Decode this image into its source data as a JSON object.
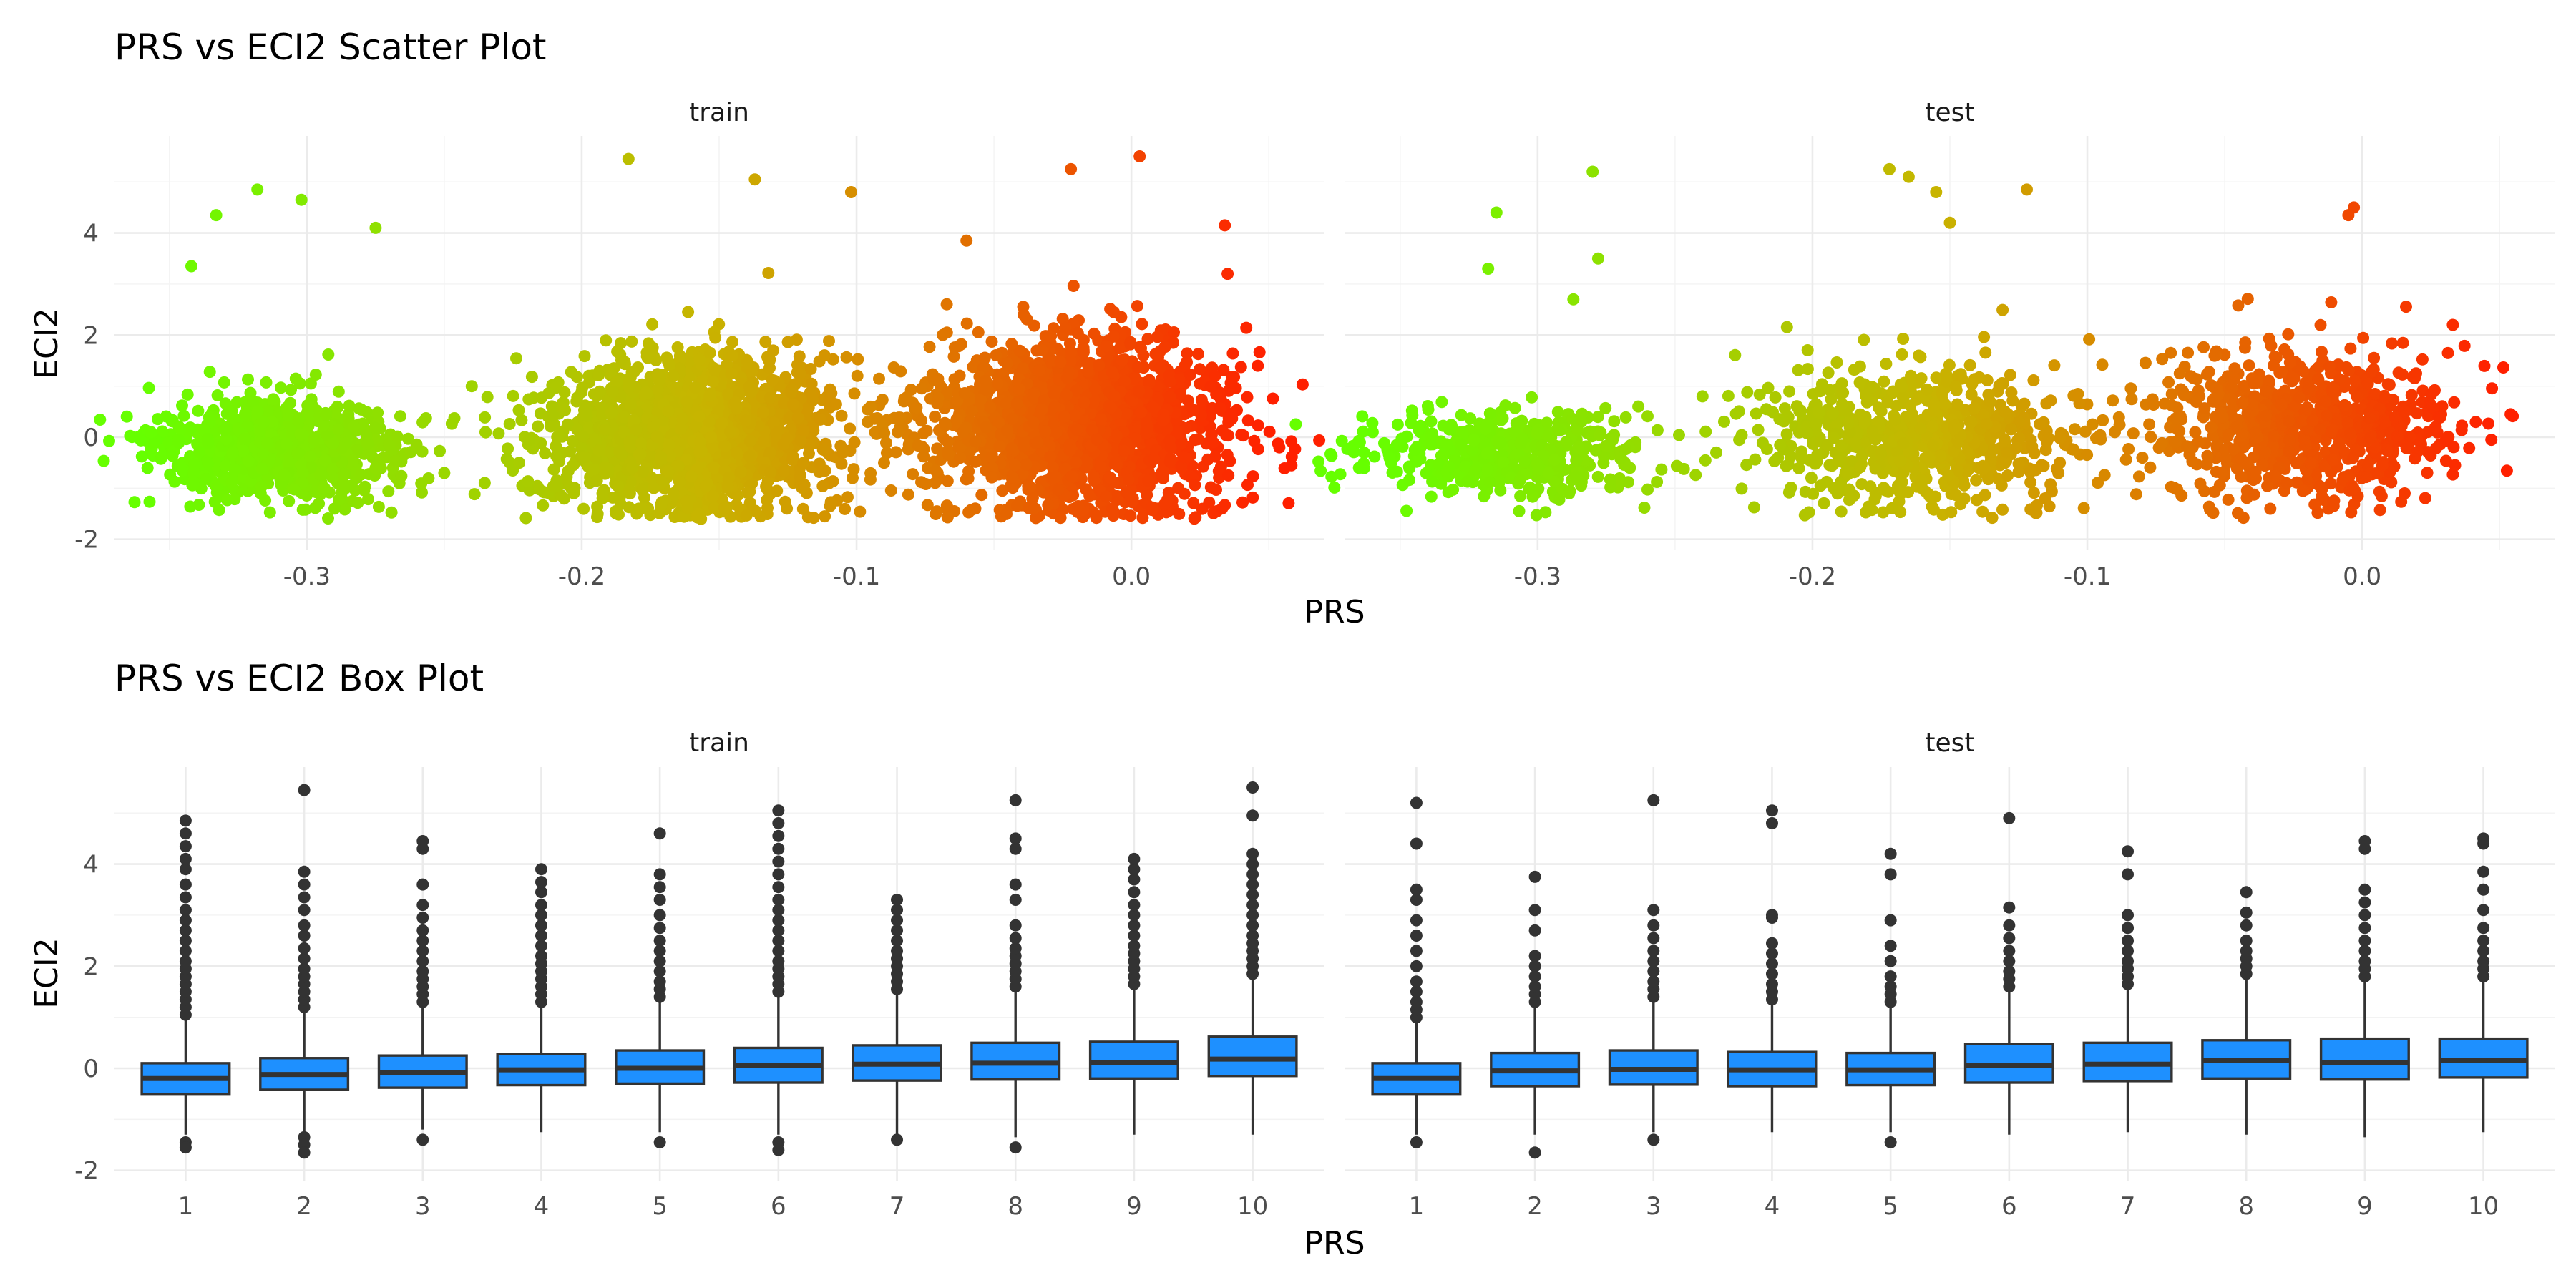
{
  "chart_data": [
    {
      "type": "scatter",
      "title": "PRS vs ECI2 Scatter Plot",
      "xlabel": "PRS",
      "ylabel": "ECI2",
      "facets": [
        "train",
        "test"
      ],
      "xlim": [
        -0.37,
        0.07
      ],
      "ylim": [
        -2.2,
        5.9
      ],
      "x_ticks": [
        -0.3,
        -0.2,
        -0.1,
        0.0
      ],
      "x_tick_labels": [
        "-0.3",
        "-0.2",
        "-0.1",
        "0.0"
      ],
      "y_ticks": [
        -2,
        0,
        2,
        4
      ],
      "y_tick_labels": [
        "-2",
        "0",
        "2",
        "4"
      ],
      "color_low": "#66ff00",
      "color_mid": "#c8b400",
      "color_high": "#ff2000",
      "clusters": [
        {
          "panel": "train",
          "x_center": -0.31,
          "x_spread": 0.022,
          "y_center": -0.3,
          "y_spread": 0.45,
          "n": 900
        },
        {
          "panel": "train",
          "x_center": -0.16,
          "x_spread": 0.028,
          "y_center": 0.05,
          "y_spread": 0.75,
          "n": 1500
        },
        {
          "panel": "train",
          "x_center": -0.02,
          "x_spread": 0.026,
          "y_center": 0.25,
          "y_spread": 0.8,
          "n": 1800
        },
        {
          "panel": "test",
          "x_center": -0.31,
          "x_spread": 0.025,
          "y_center": -0.3,
          "y_spread": 0.4,
          "n": 450
        },
        {
          "panel": "test",
          "x_center": -0.16,
          "x_spread": 0.03,
          "y_center": 0.0,
          "y_spread": 0.65,
          "n": 700
        },
        {
          "panel": "test",
          "x_center": -0.02,
          "x_spread": 0.026,
          "y_center": 0.2,
          "y_spread": 0.7,
          "n": 800
        }
      ],
      "extra_points": [
        {
          "panel": "train",
          "x": 0.046,
          "y": 1.4
        },
        {
          "panel": "train",
          "x": 0.034,
          "y": 4.15
        },
        {
          "panel": "train",
          "x": 0.035,
          "y": 3.2
        },
        {
          "panel": "train",
          "x": 0.04,
          "y": 0.05
        },
        {
          "panel": "train",
          "x": 0.003,
          "y": 5.5
        },
        {
          "panel": "train",
          "x": -0.022,
          "y": 5.25
        },
        {
          "panel": "train",
          "x": -0.183,
          "y": 5.45
        },
        {
          "panel": "train",
          "x": -0.137,
          "y": 5.05
        },
        {
          "panel": "train",
          "x": -0.102,
          "y": 4.8
        },
        {
          "panel": "train",
          "x": -0.318,
          "y": 4.85
        },
        {
          "panel": "train",
          "x": -0.333,
          "y": 4.35
        },
        {
          "panel": "train",
          "x": -0.302,
          "y": 4.65
        },
        {
          "panel": "train",
          "x": -0.342,
          "y": 3.35
        },
        {
          "panel": "train",
          "x": -0.275,
          "y": 4.1
        },
        {
          "panel": "train",
          "x": -0.06,
          "y": 3.85
        },
        {
          "panel": "train",
          "x": -0.24,
          "y": 1.0
        },
        {
          "panel": "train",
          "x": -0.235,
          "y": 0.1
        },
        {
          "panel": "train",
          "x": -0.25,
          "y": -0.7
        },
        {
          "panel": "train",
          "x": -0.085,
          "y": 0.1
        },
        {
          "panel": "train",
          "x": -0.09,
          "y": -0.5
        },
        {
          "panel": "test",
          "x": 0.047,
          "y": -0.05
        },
        {
          "panel": "test",
          "x": 0.033,
          "y": 2.2
        },
        {
          "panel": "test",
          "x": -0.003,
          "y": 4.5
        },
        {
          "panel": "test",
          "x": -0.005,
          "y": 4.35
        },
        {
          "panel": "test",
          "x": -0.172,
          "y": 5.25
        },
        {
          "panel": "test",
          "x": -0.165,
          "y": 5.1
        },
        {
          "panel": "test",
          "x": -0.155,
          "y": 4.8
        },
        {
          "panel": "test",
          "x": -0.122,
          "y": 4.85
        },
        {
          "panel": "test",
          "x": -0.15,
          "y": 4.2
        },
        {
          "panel": "test",
          "x": -0.28,
          "y": 5.2
        },
        {
          "panel": "test",
          "x": -0.315,
          "y": 4.4
        },
        {
          "panel": "test",
          "x": -0.318,
          "y": 3.3
        },
        {
          "panel": "test",
          "x": -0.278,
          "y": 3.5
        },
        {
          "panel": "test",
          "x": -0.287,
          "y": 2.7
        },
        {
          "panel": "test",
          "x": -0.36,
          "y": 0.1
        },
        {
          "panel": "test",
          "x": -0.365,
          "y": -0.6
        },
        {
          "panel": "test",
          "x": -0.24,
          "y": 0.8
        },
        {
          "panel": "test",
          "x": -0.235,
          "y": -0.3
        },
        {
          "panel": "test",
          "x": -0.09,
          "y": 0.1
        },
        {
          "panel": "test",
          "x": -0.08,
          "y": -0.4
        },
        {
          "panel": "test",
          "x": -0.11,
          "y": -0.5
        }
      ]
    },
    {
      "type": "box",
      "title": "PRS vs ECI2 Box Plot",
      "xlabel": "PRS",
      "ylabel": "ECI2",
      "facets": [
        "train",
        "test"
      ],
      "categories": [
        "1",
        "2",
        "3",
        "4",
        "5",
        "6",
        "7",
        "8",
        "9",
        "10"
      ],
      "ylim": [
        -2.2,
        5.9
      ],
      "y_ticks": [
        -2,
        0,
        2,
        4
      ],
      "y_tick_labels": [
        "-2",
        "0",
        "2",
        "4"
      ],
      "box_color": "#1e90ff",
      "panels": [
        {
          "name": "train",
          "boxes": [
            {
              "q1": -0.5,
              "median": -0.2,
              "q3": 0.1,
              "lower": -1.3,
              "upper": 0.95,
              "outliers_high": [
                1.05,
                1.2,
                1.35,
                1.5,
                1.65,
                1.8,
                1.95,
                2.1,
                2.3,
                2.5,
                2.7,
                2.9,
                3.1,
                3.35,
                3.6,
                3.9,
                4.1,
                4.35,
                4.6,
                4.85
              ],
              "outliers_low": [
                -1.45,
                -1.55
              ]
            },
            {
              "q1": -0.42,
              "median": -0.12,
              "q3": 0.2,
              "lower": -1.25,
              "upper": 1.1,
              "outliers_high": [
                1.2,
                1.35,
                1.5,
                1.65,
                1.8,
                1.95,
                2.15,
                2.35,
                2.6,
                2.8,
                3.1,
                3.35,
                3.6,
                3.85,
                5.45
              ],
              "outliers_low": [
                -1.35,
                -1.5,
                -1.65
              ]
            },
            {
              "q1": -0.38,
              "median": -0.08,
              "q3": 0.25,
              "lower": -1.2,
              "upper": 1.2,
              "outliers_high": [
                1.3,
                1.45,
                1.6,
                1.75,
                1.9,
                2.1,
                2.3,
                2.5,
                2.7,
                2.95,
                3.2,
                3.6,
                4.3,
                4.45
              ],
              "outliers_low": [
                -1.4
              ]
            },
            {
              "q1": -0.33,
              "median": -0.03,
              "q3": 0.28,
              "lower": -1.25,
              "upper": 1.2,
              "outliers_high": [
                1.3,
                1.45,
                1.6,
                1.75,
                1.9,
                2.05,
                2.2,
                2.4,
                2.6,
                2.8,
                3.0,
                3.2,
                3.45,
                3.65,
                3.9
              ]
            },
            {
              "q1": -0.3,
              "median": 0.0,
              "q3": 0.35,
              "lower": -1.25,
              "upper": 1.3,
              "outliers_high": [
                1.4,
                1.55,
                1.7,
                1.9,
                2.1,
                2.3,
                2.5,
                2.75,
                3.0,
                3.3,
                3.55,
                3.8,
                4.6
              ],
              "outliers_low": [
                -1.45
              ]
            },
            {
              "q1": -0.28,
              "median": 0.05,
              "q3": 0.4,
              "lower": -1.3,
              "upper": 1.4,
              "outliers_high": [
                1.5,
                1.65,
                1.8,
                1.95,
                2.1,
                2.3,
                2.5,
                2.7,
                2.9,
                3.1,
                3.3,
                3.55,
                3.8,
                4.05,
                4.3,
                4.55,
                4.8,
                5.05
              ],
              "outliers_low": [
                -1.45,
                -1.6
              ]
            },
            {
              "q1": -0.24,
              "median": 0.08,
              "q3": 0.45,
              "lower": -1.3,
              "upper": 1.45,
              "outliers_high": [
                1.55,
                1.7,
                1.85,
                2.0,
                2.15,
                2.3,
                2.5,
                2.7,
                2.9,
                3.1,
                3.3
              ],
              "outliers_low": [
                -1.4
              ]
            },
            {
              "q1": -0.22,
              "median": 0.1,
              "q3": 0.5,
              "lower": -1.35,
              "upper": 1.5,
              "outliers_high": [
                1.6,
                1.75,
                1.9,
                2.05,
                2.2,
                2.35,
                2.55,
                2.8,
                3.3,
                3.6,
                4.3,
                4.5,
                5.25
              ],
              "outliers_low": [
                -1.55
              ]
            },
            {
              "q1": -0.2,
              "median": 0.12,
              "q3": 0.52,
              "lower": -1.3,
              "upper": 1.55,
              "outliers_high": [
                1.65,
                1.8,
                1.95,
                2.1,
                2.25,
                2.4,
                2.6,
                2.8,
                3.0,
                3.2,
                3.45,
                3.7,
                3.9,
                4.1
              ]
            },
            {
              "q1": -0.15,
              "median": 0.18,
              "q3": 0.62,
              "lower": -1.3,
              "upper": 1.75,
              "outliers_high": [
                1.85,
                2.0,
                2.15,
                2.3,
                2.45,
                2.6,
                2.8,
                3.0,
                3.2,
                3.4,
                3.6,
                3.8,
                4.0,
                4.2,
                4.95,
                5.5
              ]
            }
          ]
        },
        {
          "name": "test",
          "boxes": [
            {
              "q1": -0.5,
              "median": -0.2,
              "q3": 0.1,
              "lower": -1.3,
              "upper": 0.9,
              "outliers_high": [
                1.0,
                1.15,
                1.3,
                1.5,
                1.7,
                2.0,
                2.3,
                2.6,
                2.9,
                3.3,
                3.5,
                4.4,
                5.2
              ],
              "outliers_low": [
                -1.45
              ]
            },
            {
              "q1": -0.35,
              "median": -0.05,
              "q3": 0.3,
              "lower": -1.3,
              "upper": 1.2,
              "outliers_high": [
                1.3,
                1.45,
                1.6,
                1.8,
                2.0,
                2.2,
                2.7,
                3.1,
                3.75
              ],
              "outliers_low": [
                -1.65
              ]
            },
            {
              "q1": -0.32,
              "median": -0.02,
              "q3": 0.35,
              "lower": -1.25,
              "upper": 1.3,
              "outliers_high": [
                1.4,
                1.55,
                1.7,
                1.9,
                2.1,
                2.3,
                2.55,
                2.8,
                3.1,
                5.25
              ],
              "outliers_low": [
                -1.4
              ]
            },
            {
              "q1": -0.35,
              "median": -0.03,
              "q3": 0.32,
              "lower": -1.25,
              "upper": 1.25,
              "outliers_high": [
                1.35,
                1.5,
                1.65,
                1.85,
                2.05,
                2.25,
                2.45,
                2.95,
                3.0,
                4.8,
                5.05
              ]
            },
            {
              "q1": -0.33,
              "median": -0.03,
              "q3": 0.3,
              "lower": -1.25,
              "upper": 1.2,
              "outliers_high": [
                1.3,
                1.45,
                1.6,
                1.8,
                2.1,
                2.4,
                2.9,
                3.8,
                4.2
              ],
              "outliers_low": [
                -1.45
              ]
            },
            {
              "q1": -0.28,
              "median": 0.05,
              "q3": 0.48,
              "lower": -1.3,
              "upper": 1.5,
              "outliers_high": [
                1.6,
                1.75,
                1.9,
                2.1,
                2.3,
                2.55,
                2.8,
                3.15,
                4.9
              ]
            },
            {
              "q1": -0.25,
              "median": 0.08,
              "q3": 0.5,
              "lower": -1.25,
              "upper": 1.55,
              "outliers_high": [
                1.65,
                1.8,
                1.95,
                2.1,
                2.3,
                2.5,
                2.75,
                3.0,
                3.8,
                4.25
              ]
            },
            {
              "q1": -0.2,
              "median": 0.15,
              "q3": 0.55,
              "lower": -1.3,
              "upper": 1.75,
              "outliers_high": [
                1.85,
                2.0,
                2.15,
                2.3,
                2.5,
                2.8,
                3.05,
                3.45
              ]
            },
            {
              "q1": -0.22,
              "median": 0.12,
              "q3": 0.58,
              "lower": -1.35,
              "upper": 1.7,
              "outliers_high": [
                1.8,
                1.95,
                2.1,
                2.3,
                2.5,
                2.75,
                3.0,
                3.25,
                3.5,
                4.3,
                4.45
              ]
            },
            {
              "q1": -0.18,
              "median": 0.15,
              "q3": 0.58,
              "lower": -1.25,
              "upper": 1.7,
              "outliers_high": [
                1.8,
                1.95,
                2.1,
                2.3,
                2.5,
                2.75,
                3.1,
                3.5,
                3.85,
                4.4,
                4.5
              ]
            }
          ]
        }
      ]
    }
  ]
}
